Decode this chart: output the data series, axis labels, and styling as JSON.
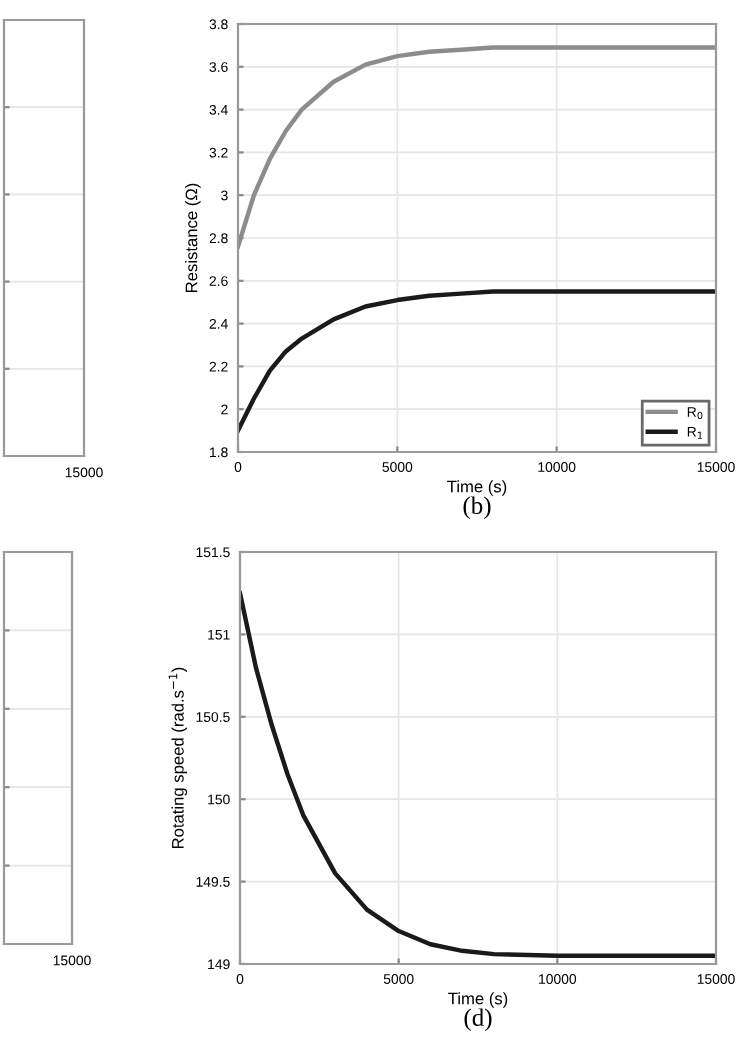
{
  "chart_data": [
    {
      "type": "other",
      "annotations": [
        "15000"
      ]
    },
    {
      "type": "line",
      "title": "(b)",
      "xlabel": "Time (s)",
      "ylabel": "Resistance (Ω)",
      "xlim": [
        0,
        15000
      ],
      "xticks": [
        0,
        5000,
        10000,
        15000
      ],
      "ylim": [
        1.8,
        3.8
      ],
      "yticks": [
        1.8,
        2,
        2.2,
        2.4,
        2.6,
        2.8,
        3,
        3.2,
        3.4,
        3.6,
        3.8
      ],
      "grid": true,
      "legend": "bottom right",
      "series": [
        {
          "name": "R$_{0}$",
          "color": "#8c8c8c",
          "x": [
            0,
            500,
            1000,
            1500,
            2000,
            3000,
            4000,
            5000,
            6000,
            7000,
            8000,
            10000,
            15000
          ],
          "values": [
            2.76,
            3.0,
            3.17,
            3.3,
            3.4,
            3.53,
            3.61,
            3.65,
            3.67,
            3.68,
            3.69,
            3.69,
            3.69
          ]
        },
        {
          "name": "R$_{1}$",
          "color": "#1a1a1a",
          "x": [
            0,
            500,
            1000,
            1500,
            2000,
            3000,
            4000,
            5000,
            6000,
            7000,
            8000,
            10000,
            15000
          ],
          "values": [
            1.9,
            2.05,
            2.18,
            2.27,
            2.33,
            2.42,
            2.48,
            2.51,
            2.53,
            2.54,
            2.55,
            2.55,
            2.55
          ]
        }
      ]
    },
    {
      "type": "other",
      "annotations": [
        "15000"
      ]
    },
    {
      "type": "line",
      "title": "(d)",
      "xlabel": "Time (s)",
      "ylabel": "Rotating speed (rad.s$^{−1}$)",
      "xlim": [
        0,
        15000
      ],
      "xticks": [
        0,
        5000,
        10000,
        15000
      ],
      "ylim": [
        149,
        151.5
      ],
      "yticks": [
        149,
        149.5,
        150,
        150.5,
        151,
        151.5
      ],
      "grid": true,
      "series": [
        {
          "color": "#1a1a1a",
          "x": [
            0,
            500,
            1000,
            1500,
            2000,
            3000,
            4000,
            5000,
            6000,
            7000,
            8000,
            10000,
            15000
          ],
          "values": [
            151.25,
            150.8,
            150.45,
            150.15,
            149.9,
            149.55,
            149.33,
            149.2,
            149.12,
            149.08,
            149.06,
            149.05,
            149.05
          ]
        }
      ]
    }
  ]
}
